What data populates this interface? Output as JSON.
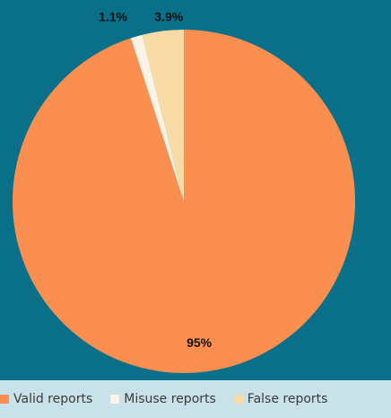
{
  "chart_data": {
    "type": "pie",
    "title": "",
    "categories": [
      "Valid reports",
      "Misuse reports",
      "False reports"
    ],
    "values": [
      95,
      1.1,
      3.9
    ],
    "labels": [
      "95%",
      "1.1%",
      "3.9%"
    ],
    "colors": [
      "#fa8f4f",
      "#fdf3e4",
      "#f9dba6"
    ],
    "legend": "bottom",
    "start_angle_deg": 0,
    "direction": "clockwise"
  },
  "colors": {
    "background": "#0a6f88",
    "legend_background": "#c9e2e9"
  }
}
